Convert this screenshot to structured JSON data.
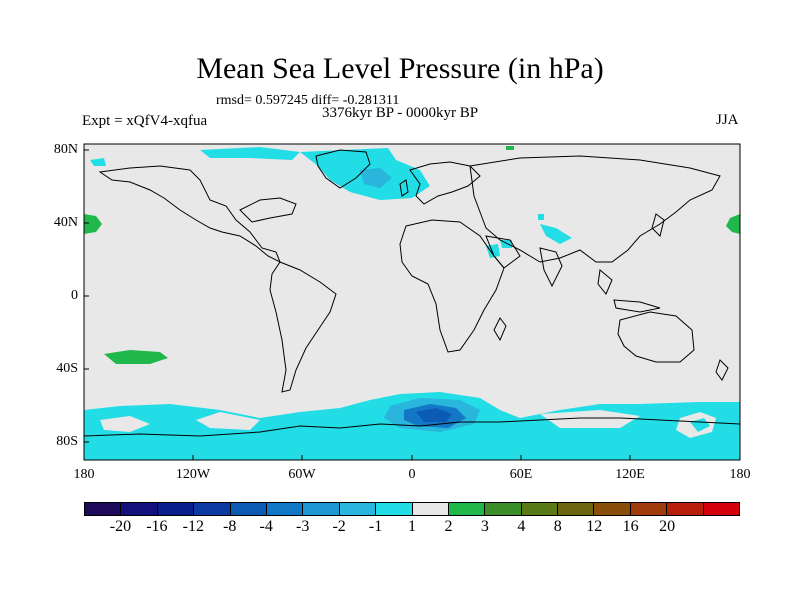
{
  "title": "Mean Sea Level Pressure (in hPa)",
  "stats": "rmsd= 0.597245  diff= -0.281311",
  "period": "3376kyr BP - 0000kyr BP",
  "experiment": "Expt = xQfV4-xqfua",
  "season": "JJA",
  "lat_labels": [
    "80N",
    "40N",
    "0",
    "40S",
    "80S"
  ],
  "lon_labels": [
    "180",
    "120W",
    "60W",
    "0",
    "60E",
    "120E",
    "180"
  ],
  "colorbar": {
    "colors": [
      "#1e0a5a",
      "#14107c",
      "#0b1f8c",
      "#0c3aa0",
      "#0b5bb4",
      "#1277c4",
      "#1f97d2",
      "#29b5dc",
      "#22dde6",
      "#e8e8e8",
      "#20b84a",
      "#3c8f28",
      "#5a7a18",
      "#6e6510",
      "#8a4e0c",
      "#a03c0c",
      "#b81e0c",
      "#d4000c"
    ],
    "labels": [
      "-20",
      "-16",
      "-12",
      "-8",
      "-4",
      "-3",
      "-2",
      "-1",
      "1",
      "2",
      "3",
      "4",
      "8",
      "12",
      "16",
      "20"
    ]
  },
  "palette": {
    "background_fill": "#e8e8e8",
    "neg_light": "#22dde6",
    "neg_mid": "#29b5dc",
    "neg_dark": "#1277c4",
    "neg_deep": "#0b5bb4",
    "pos_green": "#20b84a"
  }
}
